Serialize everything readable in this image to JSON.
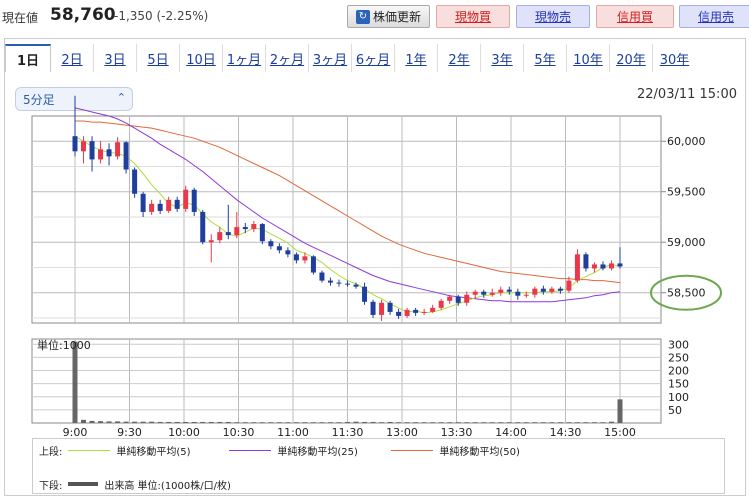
{
  "header": {
    "price_label": "現在値",
    "price": "58,760",
    "change": "-1,350 (-2.25%)",
    "refresh_label": "株価更新",
    "buttons": [
      "現物買",
      "現物売",
      "信用買",
      "信用売"
    ]
  },
  "tabs": [
    "1日",
    "2日",
    "3日",
    "5日",
    "10日",
    "1ヶ月",
    "2ヶ月",
    "3ヶ月",
    "6ヶ月",
    "1年",
    "2年",
    "3年",
    "5年",
    "10年",
    "20年",
    "30年"
  ],
  "active_tab": "1日",
  "interval_select": "5分足",
  "timestamp": "22/03/11 15:00",
  "colors": {
    "up": "#e8384a",
    "down": "#1f3f9e",
    "ma5": "#aedc3c",
    "ma25": "#8f38d9",
    "ma50": "#e0673a",
    "volume": "#666666",
    "highlight_circle": "#6aa84f"
  },
  "chart_data": [
    {
      "type": "candlestick",
      "x_ticks": [
        "9:00",
        "9:30",
        "10:00",
        "10:30",
        "11:00",
        "11:30",
        "13:00",
        "13:30",
        "14:00",
        "14:30",
        "15:00"
      ],
      "y_ticks": [
        "60,000",
        "59,500",
        "59,000",
        "58,500"
      ],
      "ylim": [
        58200,
        60250
      ],
      "grid": true,
      "highlighted_tick": "58,500",
      "candles": [
        {
          "o": 60050,
          "c": 59900,
          "h": 60450,
          "l": 59850
        },
        {
          "o": 59900,
          "c": 60000,
          "h": 60050,
          "l": 59780
        },
        {
          "o": 60000,
          "c": 59820,
          "h": 60050,
          "l": 59700
        },
        {
          "o": 59820,
          "c": 59920,
          "h": 60000,
          "l": 59780
        },
        {
          "o": 59920,
          "c": 59850,
          "h": 59980,
          "l": 59760
        },
        {
          "o": 59850,
          "c": 59990,
          "h": 60040,
          "l": 59820
        },
        {
          "o": 59990,
          "c": 59720,
          "h": 60000,
          "l": 59680
        },
        {
          "o": 59720,
          "c": 59480,
          "h": 59740,
          "l": 59440
        },
        {
          "o": 59480,
          "c": 59300,
          "h": 59500,
          "l": 59250
        },
        {
          "o": 59300,
          "c": 59380,
          "h": 59420,
          "l": 59270
        },
        {
          "o": 59380,
          "c": 59310,
          "h": 59420,
          "l": 59280
        },
        {
          "o": 59310,
          "c": 59420,
          "h": 59450,
          "l": 59290
        },
        {
          "o": 59420,
          "c": 59330,
          "h": 59450,
          "l": 59300
        },
        {
          "o": 59330,
          "c": 59520,
          "h": 59560,
          "l": 59300
        },
        {
          "o": 59520,
          "c": 59300,
          "h": 59540,
          "l": 59260
        },
        {
          "o": 59300,
          "c": 59000,
          "h": 59320,
          "l": 58980
        },
        {
          "o": 59000,
          "c": 59020,
          "h": 59080,
          "l": 58800
        },
        {
          "o": 59020,
          "c": 59100,
          "h": 59150,
          "l": 58990
        },
        {
          "o": 59100,
          "c": 59070,
          "h": 59370,
          "l": 59030
        },
        {
          "o": 59070,
          "c": 59150,
          "h": 59300,
          "l": 59040
        },
        {
          "o": 59150,
          "c": 59130,
          "h": 59190,
          "l": 59090
        },
        {
          "o": 59130,
          "c": 59180,
          "h": 59210,
          "l": 59100
        },
        {
          "o": 59180,
          "c": 59010,
          "h": 59190,
          "l": 58980
        },
        {
          "o": 59010,
          "c": 58960,
          "h": 59030,
          "l": 58930
        },
        {
          "o": 58960,
          "c": 58920,
          "h": 58990,
          "l": 58890
        },
        {
          "o": 58920,
          "c": 58880,
          "h": 58950,
          "l": 58850
        },
        {
          "o": 58880,
          "c": 58820,
          "h": 58900,
          "l": 58790
        },
        {
          "o": 58820,
          "c": 58860,
          "h": 58900,
          "l": 58790
        },
        {
          "o": 58860,
          "c": 58700,
          "h": 58870,
          "l": 58680
        },
        {
          "o": 58700,
          "c": 58620,
          "h": 58720,
          "l": 58600
        },
        {
          "o": 58620,
          "c": 58600,
          "h": 58650,
          "l": 58570
        },
        {
          "o": 58600,
          "c": 58590,
          "h": 58630,
          "l": 58560
        },
        {
          "o": 58590,
          "c": 58580,
          "h": 58620,
          "l": 58560
        },
        {
          "o": 58580,
          "c": 58560,
          "h": 58600,
          "l": 58540
        },
        {
          "o": 58560,
          "c": 58410,
          "h": 58600,
          "l": 58380
        },
        {
          "o": 58410,
          "c": 58280,
          "h": 58430,
          "l": 58250
        },
        {
          "o": 58280,
          "c": 58400,
          "h": 58430,
          "l": 58220
        },
        {
          "o": 58400,
          "c": 58310,
          "h": 58420,
          "l": 58280
        },
        {
          "o": 58310,
          "c": 58270,
          "h": 58340,
          "l": 58240
        },
        {
          "o": 58270,
          "c": 58330,
          "h": 58350,
          "l": 58250
        },
        {
          "o": 58330,
          "c": 58300,
          "h": 58350,
          "l": 58270
        },
        {
          "o": 58300,
          "c": 58310,
          "h": 58340,
          "l": 58280
        },
        {
          "o": 58310,
          "c": 58350,
          "h": 58380,
          "l": 58300
        },
        {
          "o": 58350,
          "c": 58420,
          "h": 58440,
          "l": 58330
        },
        {
          "o": 58420,
          "c": 58460,
          "h": 58480,
          "l": 58390
        },
        {
          "o": 58460,
          "c": 58400,
          "h": 58480,
          "l": 58370
        },
        {
          "o": 58400,
          "c": 58480,
          "h": 58510,
          "l": 58370
        },
        {
          "o": 58480,
          "c": 58510,
          "h": 58530,
          "l": 58440
        },
        {
          "o": 58510,
          "c": 58480,
          "h": 58530,
          "l": 58450
        },
        {
          "o": 58480,
          "c": 58500,
          "h": 58540,
          "l": 58460
        },
        {
          "o": 58500,
          "c": 58530,
          "h": 58560,
          "l": 58470
        },
        {
          "o": 58530,
          "c": 58510,
          "h": 58560,
          "l": 58480
        },
        {
          "o": 58510,
          "c": 58470,
          "h": 58540,
          "l": 58430
        },
        {
          "o": 58470,
          "c": 58480,
          "h": 58510,
          "l": 58450
        },
        {
          "o": 58480,
          "c": 58540,
          "h": 58560,
          "l": 58450
        },
        {
          "o": 58540,
          "c": 58510,
          "h": 58570,
          "l": 58480
        },
        {
          "o": 58510,
          "c": 58540,
          "h": 58560,
          "l": 58490
        },
        {
          "o": 58540,
          "c": 58520,
          "h": 58560,
          "l": 58490
        },
        {
          "o": 58520,
          "c": 58620,
          "h": 58660,
          "l": 58500
        },
        {
          "o": 58620,
          "c": 58880,
          "h": 58930,
          "l": 58600
        },
        {
          "o": 58880,
          "c": 58740,
          "h": 58900,
          "l": 58710
        },
        {
          "o": 58740,
          "c": 58780,
          "h": 58800,
          "l": 58700
        },
        {
          "o": 58780,
          "c": 58740,
          "h": 58810,
          "l": 58720
        },
        {
          "o": 58740,
          "c": 58790,
          "h": 58820,
          "l": 58720
        },
        {
          "o": 58790,
          "c": 58760,
          "h": 58950,
          "l": 58740
        }
      ],
      "ma5": [
        60050,
        60000,
        59950,
        59910,
        59890,
        59880,
        59850,
        59780,
        59680,
        59570,
        59480,
        59380,
        59350,
        59390,
        59370,
        59280,
        59200,
        59150,
        59080,
        59060,
        59100,
        59140,
        59130,
        59080,
        59040,
        58990,
        58920,
        58890,
        58850,
        58800,
        58730,
        58670,
        58620,
        58590,
        58540,
        58480,
        58440,
        58390,
        58350,
        58310,
        58320,
        58300,
        58310,
        58330,
        58360,
        58390,
        58420,
        58450,
        58470,
        58480,
        58500,
        58500,
        58500,
        58500,
        58500,
        58510,
        58510,
        58520,
        58550,
        58620,
        58660,
        58700,
        58750,
        58780,
        58760
      ],
      "ma25": [
        60330,
        60310,
        60290,
        60270,
        60250,
        60220,
        60180,
        60130,
        60080,
        60030,
        59970,
        59920,
        59870,
        59820,
        59760,
        59700,
        59630,
        59560,
        59490,
        59420,
        59360,
        59300,
        59240,
        59190,
        59140,
        59090,
        59040,
        58990,
        58950,
        58910,
        58870,
        58830,
        58790,
        58750,
        58710,
        58670,
        58640,
        58610,
        58590,
        58570,
        58550,
        58530,
        58510,
        58490,
        58470,
        58460,
        58450,
        58440,
        58430,
        58420,
        58420,
        58410,
        58410,
        58410,
        58410,
        58410,
        58410,
        58420,
        58430,
        58440,
        58450,
        58470,
        58480,
        58500,
        58510
      ],
      "ma50": [
        60200,
        60200,
        60190,
        60190,
        60180,
        60170,
        60160,
        60150,
        60140,
        60130,
        60110,
        60090,
        60070,
        60050,
        60030,
        60000,
        59970,
        59940,
        59900,
        59860,
        59820,
        59780,
        59740,
        59700,
        59660,
        59610,
        59560,
        59510,
        59460,
        59410,
        59360,
        59310,
        59260,
        59210,
        59160,
        59110,
        59060,
        59020,
        58980,
        58950,
        58920,
        58890,
        58870,
        58850,
        58830,
        58810,
        58790,
        58770,
        58750,
        58730,
        58710,
        58700,
        58690,
        58680,
        58670,
        58660,
        58650,
        58640,
        58640,
        58630,
        58630,
        58620,
        58620,
        58610,
        58600
      ]
    },
    {
      "type": "bar",
      "unit_label": "単位:1000",
      "y_ticks": [
        "300",
        "250",
        "200",
        "150",
        "100",
        "50"
      ],
      "ylim": [
        0,
        320
      ],
      "values": [
        310,
        12,
        8,
        7,
        6,
        6,
        5,
        5,
        5,
        5,
        4,
        4,
        4,
        4,
        4,
        4,
        4,
        4,
        4,
        3,
        3,
        3,
        3,
        3,
        3,
        3,
        3,
        3,
        3,
        3,
        3,
        3,
        4,
        5,
        4,
        4,
        3,
        4,
        3,
        3,
        3,
        3,
        3,
        3,
        3,
        3,
        3,
        3,
        3,
        3,
        3,
        3,
        3,
        3,
        3,
        3,
        3,
        3,
        3,
        3,
        3,
        3,
        3,
        5,
        90
      ]
    }
  ],
  "legend": {
    "upper_label": "上段:",
    "lower_label": "下段:",
    "ma5": "単純移動平均(5)",
    "ma25": "単純移動平均(25)",
    "ma50": "単純移動平均(50)",
    "volume": "出来高 単位:(1000株/口/枚)"
  }
}
